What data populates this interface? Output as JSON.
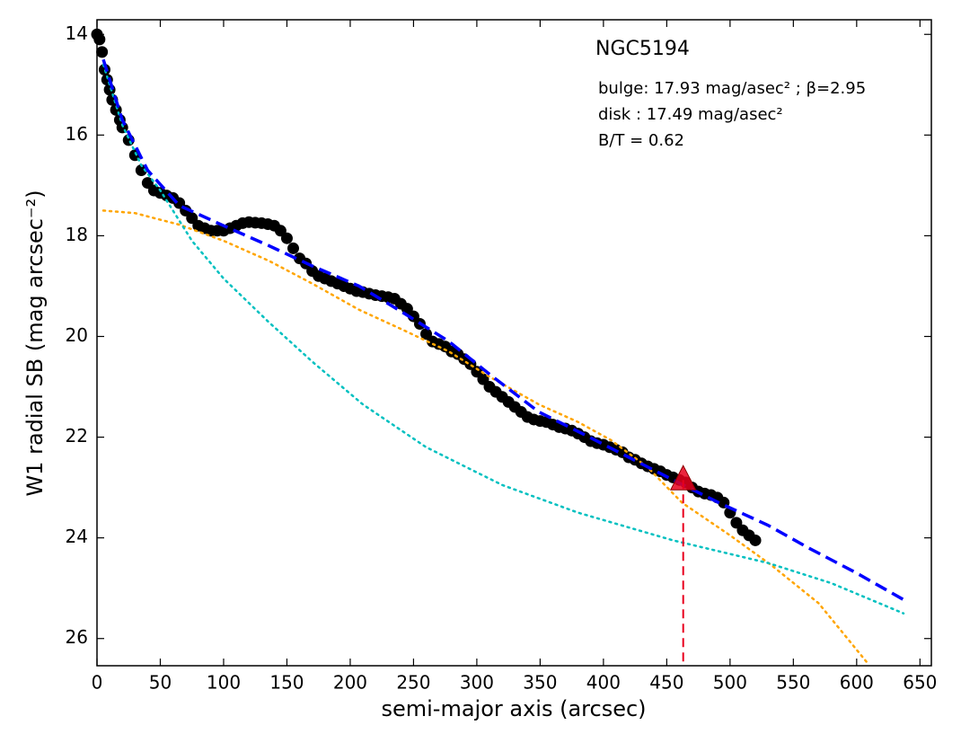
{
  "chart_data": {
    "type": "line",
    "title": "NGC5194",
    "annotations": [
      "bulge: 17.93 mag/asec² ; β=2.95",
      "disk  : 17.49 mag/asec²",
      "B/T = 0.62"
    ],
    "x_label": "semi-major axis (arcsec)",
    "y_label": "W1 radial SB (mag arcsec⁻²)",
    "xlim": [
      0,
      659
    ],
    "xticks": [
      0,
      50,
      100,
      150,
      200,
      250,
      300,
      350,
      400,
      450,
      500,
      550,
      600,
      650
    ],
    "ylim": [
      13.71,
      26.54
    ],
    "y_inverted": true,
    "yticks": [
      14,
      16,
      18,
      20,
      22,
      24,
      26
    ],
    "series": [
      {
        "style": "markers",
        "color": "#000000",
        "x": [
          0,
          2,
          4,
          6,
          8,
          10,
          12,
          15,
          18,
          20,
          25,
          30,
          35,
          40,
          45,
          50,
          55,
          60,
          65,
          70,
          75,
          80,
          85,
          90,
          95,
          100,
          105,
          110,
          115,
          120,
          125,
          130,
          135,
          140,
          145,
          150,
          155,
          160,
          165,
          170,
          175,
          180,
          185,
          190,
          195,
          200,
          205,
          210,
          215,
          220,
          225,
          230,
          235,
          240,
          245,
          250,
          255,
          260,
          265,
          270,
          275,
          280,
          285,
          290,
          295,
          300,
          305,
          310,
          315,
          320,
          325,
          330,
          335,
          340,
          345,
          350,
          355,
          360,
          365,
          370,
          375,
          380,
          385,
          390,
          395,
          400,
          405,
          410,
          415,
          420,
          425,
          430,
          435,
          440,
          445,
          450,
          455,
          460,
          465,
          470,
          475,
          480,
          485,
          490,
          495,
          500,
          505,
          510,
          515,
          520
        ],
        "values": [
          14.0,
          14.1,
          14.35,
          14.7,
          14.9,
          15.1,
          15.3,
          15.5,
          15.7,
          15.85,
          16.1,
          16.4,
          16.7,
          16.95,
          17.1,
          17.15,
          17.2,
          17.25,
          17.35,
          17.5,
          17.65,
          17.8,
          17.85,
          17.9,
          17.9,
          17.9,
          17.85,
          17.8,
          17.75,
          17.73,
          17.74,
          17.75,
          17.77,
          17.8,
          17.9,
          18.05,
          18.25,
          18.45,
          18.55,
          18.7,
          18.8,
          18.85,
          18.9,
          18.95,
          19.0,
          19.05,
          19.1,
          19.12,
          19.15,
          19.18,
          19.2,
          19.22,
          19.25,
          19.35,
          19.45,
          19.6,
          19.75,
          19.95,
          20.1,
          20.15,
          20.2,
          20.3,
          20.35,
          20.45,
          20.55,
          20.7,
          20.85,
          21.0,
          21.1,
          21.2,
          21.3,
          21.4,
          21.5,
          21.6,
          21.65,
          21.68,
          21.7,
          21.75,
          21.8,
          21.83,
          21.87,
          21.93,
          22.0,
          22.08,
          22.12,
          22.15,
          22.2,
          22.25,
          22.3,
          22.4,
          22.45,
          22.52,
          22.58,
          22.63,
          22.68,
          22.75,
          22.8,
          22.85,
          22.9,
          23.0,
          23.08,
          23.12,
          23.15,
          23.2,
          23.3,
          23.5,
          23.7,
          23.85,
          23.95,
          24.05
        ]
      },
      {
        "style": "dotted",
        "color": "#ffa500",
        "x": [
          5,
          30,
          65,
          100,
          136,
          170,
          207,
          240,
          278,
          310,
          349,
          380,
          406,
          435,
          462,
          500,
          533,
          570,
          609
        ],
        "values": [
          17.5,
          17.55,
          17.78,
          18.1,
          18.5,
          18.95,
          19.47,
          19.85,
          20.3,
          20.8,
          21.35,
          21.7,
          22.06,
          22.6,
          23.3,
          23.95,
          24.55,
          25.3,
          26.5
        ]
      },
      {
        "style": "dotted",
        "color": "#00c0c0",
        "x": [
          5,
          20,
          35,
          50,
          75,
          100,
          135,
          170,
          210,
          260,
          320,
          380,
          455,
          530,
          580,
          637
        ],
        "values": [
          14.6,
          15.8,
          16.6,
          17.1,
          18.1,
          18.85,
          19.7,
          20.5,
          21.35,
          22.2,
          22.95,
          23.5,
          24.05,
          24.5,
          24.9,
          25.5
        ]
      },
      {
        "style": "dashed",
        "color": "#0000ff",
        "x": [
          5,
          20,
          40,
          65,
          100,
          136,
          170,
          207,
          240,
          278,
          310,
          349,
          385,
          420,
          455,
          491,
          530,
          562,
          600,
          640
        ],
        "values": [
          14.5,
          15.7,
          16.7,
          17.4,
          17.8,
          18.2,
          18.6,
          19.0,
          19.5,
          20.1,
          20.75,
          21.5,
          21.95,
          22.4,
          22.85,
          23.3,
          23.75,
          24.2,
          24.7,
          25.27
        ]
      }
    ],
    "marker": {
      "x": 463,
      "y": 22.85,
      "color": "#e8001c"
    }
  }
}
